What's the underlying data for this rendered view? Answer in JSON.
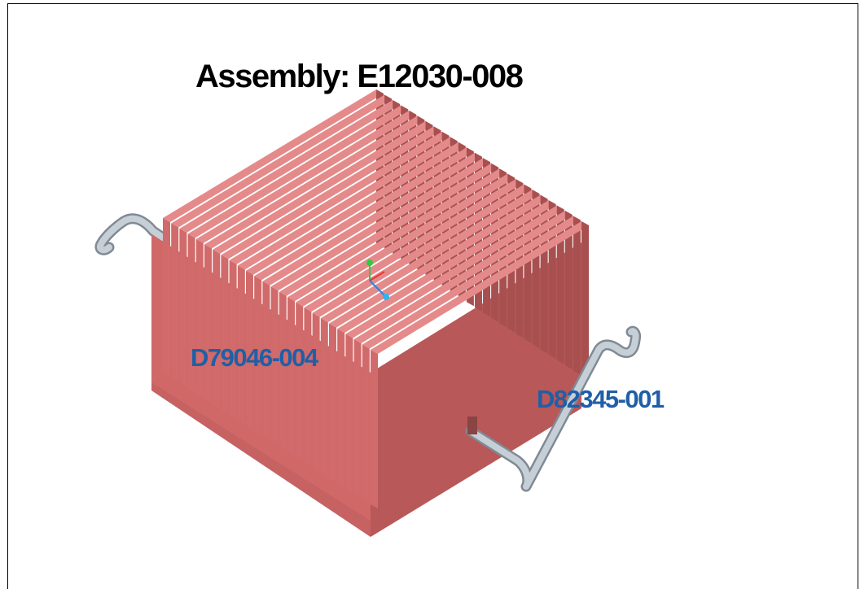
{
  "title": "Assembly: E12030-008",
  "parts": [
    {
      "id": "heatsink",
      "label": "D79046-004",
      "color": "#d16a6a"
    },
    {
      "id": "heatpipe",
      "label": "D82345-001",
      "color": "#b3bdc6"
    }
  ],
  "colors": {
    "label_text": "#1f5fa8",
    "fin_face": "#d16a6a",
    "fin_side": "#a85050",
    "pipe": "#b3bdc6"
  },
  "triad_icon": "coordinate-axes-icon"
}
